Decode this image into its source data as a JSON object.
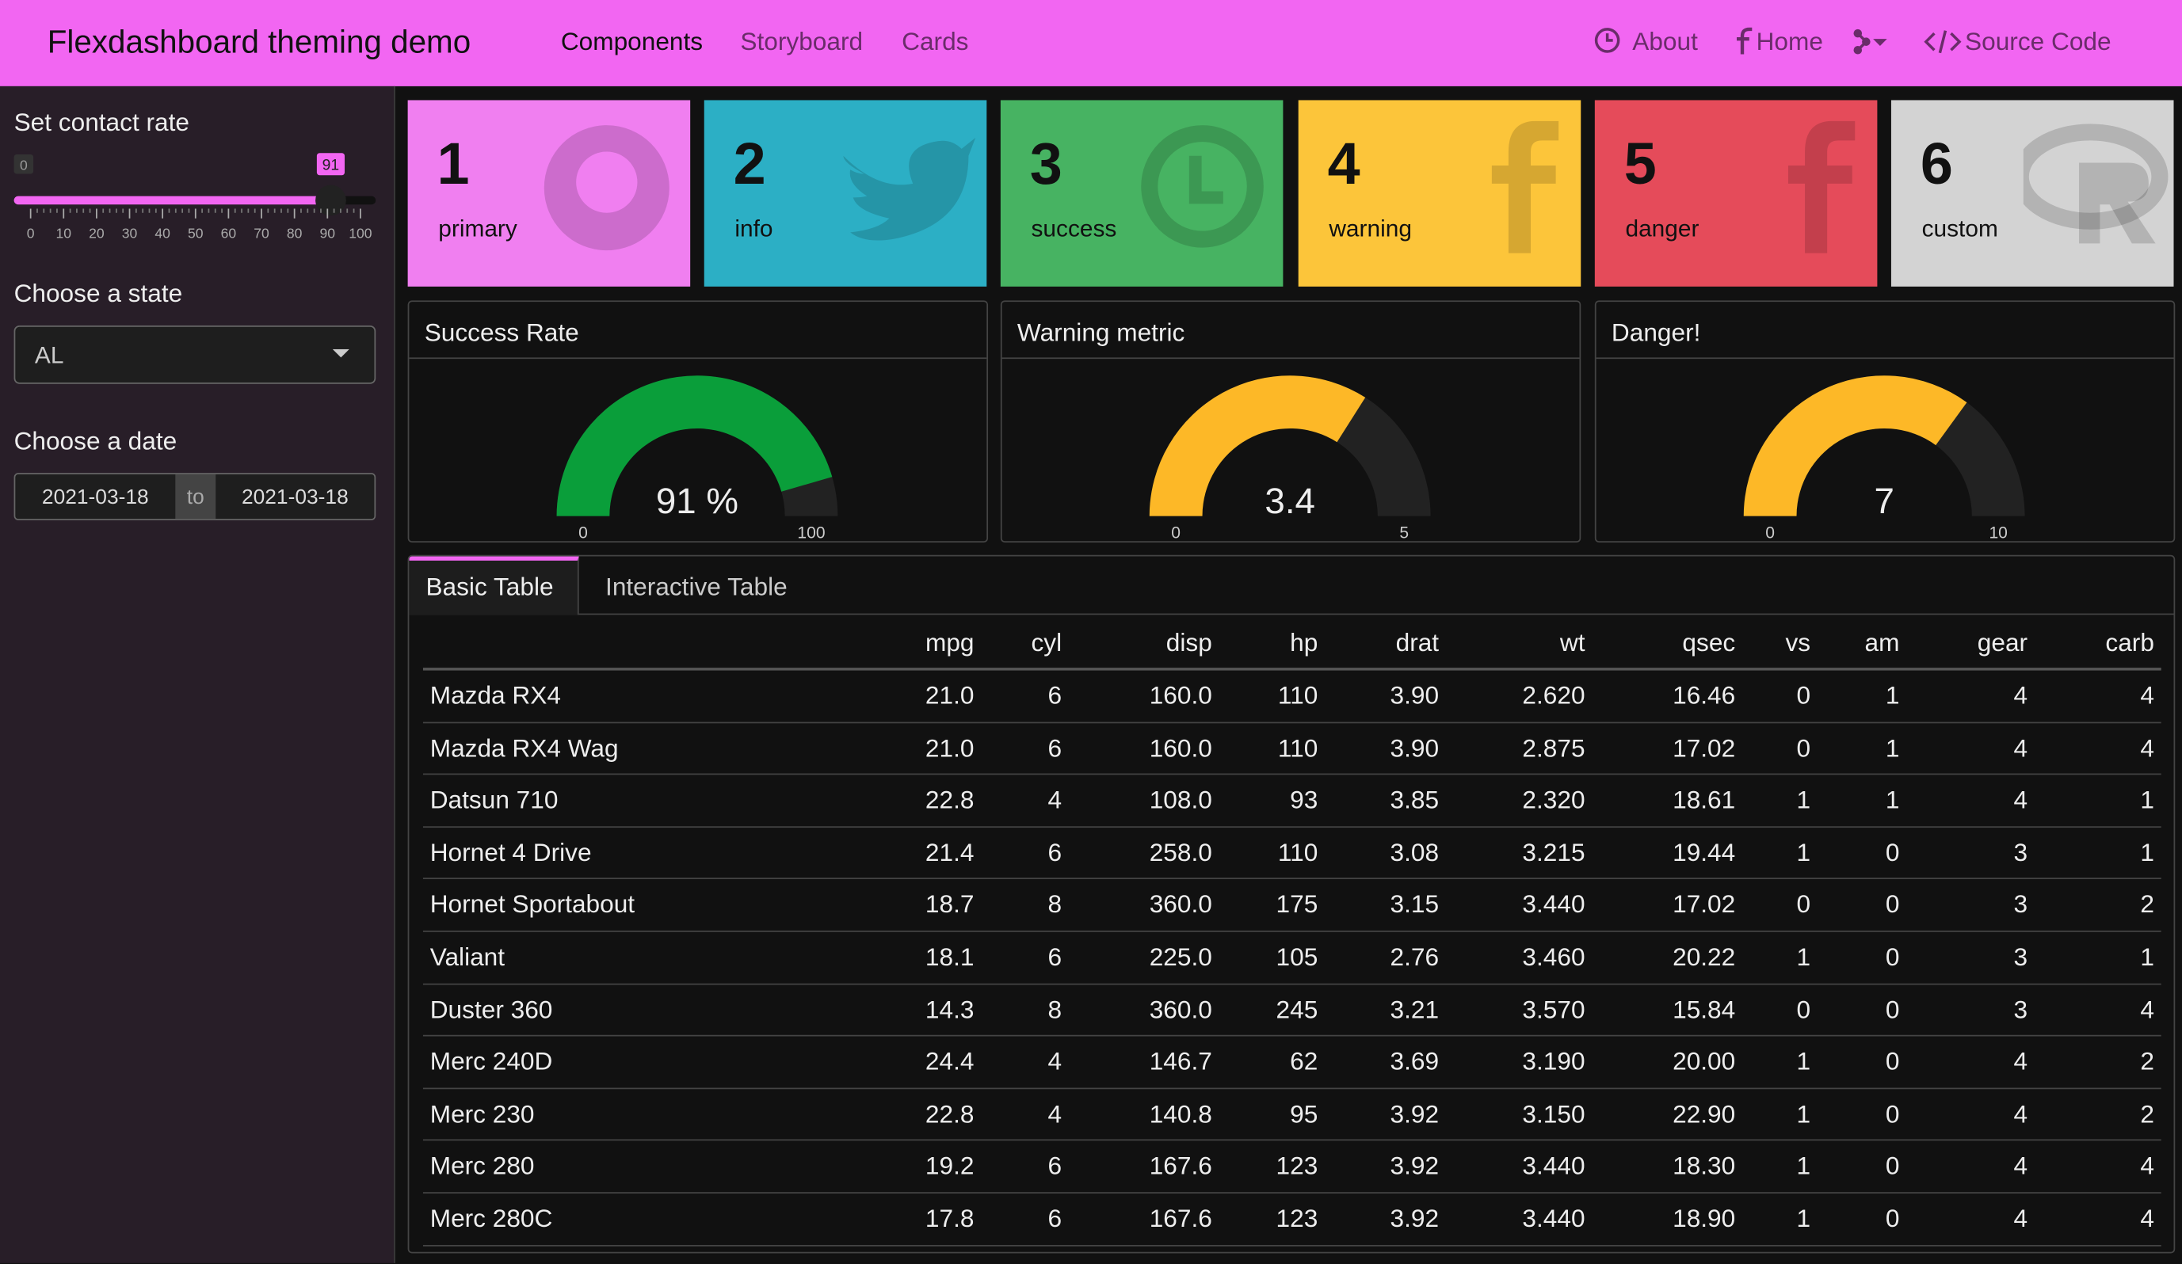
{
  "header": {
    "title": "Flexdashboard theming demo",
    "nav": [
      "Components",
      "Storyboard",
      "Cards"
    ],
    "links": [
      "About",
      "Home",
      "Source Code"
    ]
  },
  "sidebar": {
    "slider": {
      "label": "Set contact rate",
      "min": 0,
      "max": 100,
      "value": 91,
      "ticks": [
        0,
        10,
        20,
        30,
        40,
        50,
        60,
        70,
        80,
        90,
        100
      ]
    },
    "state": {
      "label": "Choose a state",
      "value": "AL"
    },
    "date": {
      "label": "Choose a date",
      "start": "2021-03-18",
      "separator": "to",
      "end": "2021-03-18"
    }
  },
  "value_boxes": [
    {
      "value": 1,
      "caption": "primary",
      "color": "#f07ff0",
      "icon": "github"
    },
    {
      "value": 2,
      "caption": "info",
      "color": "#2cafc5",
      "icon": "twitter"
    },
    {
      "value": 3,
      "caption": "success",
      "color": "#47b362",
      "icon": "clock"
    },
    {
      "value": 4,
      "caption": "warning",
      "color": "#fcc53a",
      "icon": "facebook"
    },
    {
      "value": 5,
      "caption": "danger",
      "color": "#e54b5a",
      "icon": "facebook"
    },
    {
      "value": 6,
      "caption": "custom",
      "color": "#d3d3d3",
      "icon": "r"
    }
  ],
  "gauges": [
    {
      "title": "Success Rate",
      "value": 91,
      "label": "91 %",
      "min": 0,
      "max": 100,
      "color": "#0a9e3a"
    },
    {
      "title": "Warning metric",
      "value": 3.4,
      "min": 0,
      "max": 5,
      "color": "#fdb827"
    },
    {
      "title": "Danger!",
      "value": 7,
      "min": 0,
      "max": 10,
      "color": "#fdb827"
    }
  ],
  "tabs": [
    "Basic Table",
    "Interactive Table"
  ],
  "table": {
    "columns": [
      "mpg",
      "cyl",
      "disp",
      "hp",
      "drat",
      "wt",
      "qsec",
      "vs",
      "am",
      "gear",
      "carb"
    ],
    "rows": [
      [
        "Mazda RX4",
        "21.0",
        "6",
        "160.0",
        "110",
        "3.90",
        "2.620",
        "16.46",
        "0",
        "1",
        "4",
        "4"
      ],
      [
        "Mazda RX4 Wag",
        "21.0",
        "6",
        "160.0",
        "110",
        "3.90",
        "2.875",
        "17.02",
        "0",
        "1",
        "4",
        "4"
      ],
      [
        "Datsun 710",
        "22.8",
        "4",
        "108.0",
        "93",
        "3.85",
        "2.320",
        "18.61",
        "1",
        "1",
        "4",
        "1"
      ],
      [
        "Hornet 4 Drive",
        "21.4",
        "6",
        "258.0",
        "110",
        "3.08",
        "3.215",
        "19.44",
        "1",
        "0",
        "3",
        "1"
      ],
      [
        "Hornet Sportabout",
        "18.7",
        "8",
        "360.0",
        "175",
        "3.15",
        "3.440",
        "17.02",
        "0",
        "0",
        "3",
        "2"
      ],
      [
        "Valiant",
        "18.1",
        "6",
        "225.0",
        "105",
        "2.76",
        "3.460",
        "20.22",
        "1",
        "0",
        "3",
        "1"
      ],
      [
        "Duster 360",
        "14.3",
        "8",
        "360.0",
        "245",
        "3.21",
        "3.570",
        "15.84",
        "0",
        "0",
        "3",
        "4"
      ],
      [
        "Merc 240D",
        "24.4",
        "4",
        "146.7",
        "62",
        "3.69",
        "3.190",
        "20.00",
        "1",
        "0",
        "4",
        "2"
      ],
      [
        "Merc 230",
        "22.8",
        "4",
        "140.8",
        "95",
        "3.92",
        "3.150",
        "22.90",
        "1",
        "0",
        "4",
        "2"
      ],
      [
        "Merc 280",
        "19.2",
        "6",
        "167.6",
        "123",
        "3.92",
        "3.440",
        "18.30",
        "1",
        "0",
        "4",
        "4"
      ],
      [
        "Merc 280C",
        "17.8",
        "6",
        "167.6",
        "123",
        "3.92",
        "3.440",
        "18.90",
        "1",
        "0",
        "4",
        "4"
      ]
    ]
  }
}
